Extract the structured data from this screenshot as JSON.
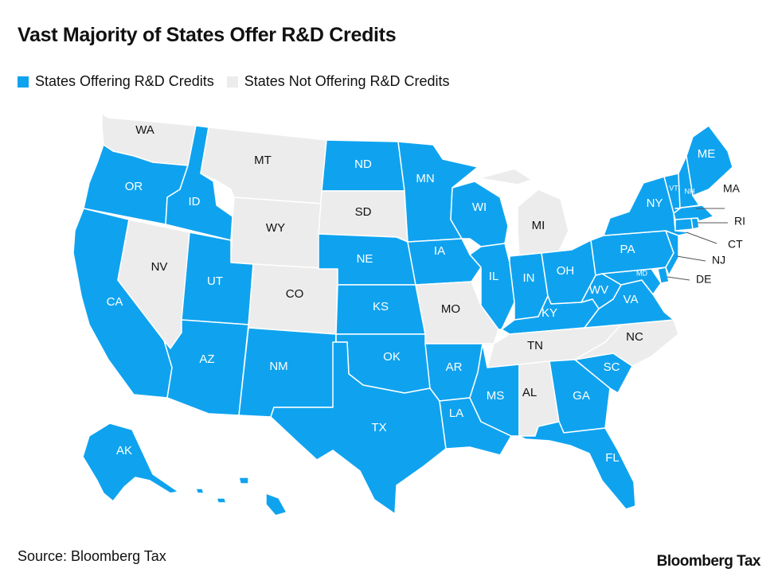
{
  "title": "Vast Majority of States Offer R&D Credits",
  "legend": {
    "offering": "States Offering R&D Credits",
    "not_offering": "States Not Offering R&D Credits"
  },
  "colors": {
    "offering": "#0fa3ef",
    "not_offering": "#ececec",
    "border": "#ffffff",
    "text_on_offering": "#ffffff",
    "text_on_not_offering": "#111111"
  },
  "states": [
    {
      "code": "WA",
      "offers_credit": false
    },
    {
      "code": "OR",
      "offers_credit": true
    },
    {
      "code": "CA",
      "offers_credit": true
    },
    {
      "code": "NV",
      "offers_credit": false
    },
    {
      "code": "ID",
      "offers_credit": true
    },
    {
      "code": "MT",
      "offers_credit": false
    },
    {
      "code": "WY",
      "offers_credit": false
    },
    {
      "code": "UT",
      "offers_credit": true
    },
    {
      "code": "AZ",
      "offers_credit": true
    },
    {
      "code": "CO",
      "offers_credit": false
    },
    {
      "code": "NM",
      "offers_credit": true
    },
    {
      "code": "ND",
      "offers_credit": true
    },
    {
      "code": "SD",
      "offers_credit": false
    },
    {
      "code": "NE",
      "offers_credit": true
    },
    {
      "code": "KS",
      "offers_credit": true
    },
    {
      "code": "OK",
      "offers_credit": true
    },
    {
      "code": "TX",
      "offers_credit": true
    },
    {
      "code": "MN",
      "offers_credit": true
    },
    {
      "code": "IA",
      "offers_credit": true
    },
    {
      "code": "MO",
      "offers_credit": false
    },
    {
      "code": "AR",
      "offers_credit": true
    },
    {
      "code": "LA",
      "offers_credit": true
    },
    {
      "code": "WI",
      "offers_credit": true
    },
    {
      "code": "IL",
      "offers_credit": true
    },
    {
      "code": "MI",
      "offers_credit": false
    },
    {
      "code": "IN",
      "offers_credit": true
    },
    {
      "code": "OH",
      "offers_credit": true
    },
    {
      "code": "KY",
      "offers_credit": true
    },
    {
      "code": "TN",
      "offers_credit": false
    },
    {
      "code": "MS",
      "offers_credit": true
    },
    {
      "code": "AL",
      "offers_credit": false
    },
    {
      "code": "GA",
      "offers_credit": true
    },
    {
      "code": "FL",
      "offers_credit": true
    },
    {
      "code": "SC",
      "offers_credit": true
    },
    {
      "code": "NC",
      "offers_credit": false
    },
    {
      "code": "VA",
      "offers_credit": true
    },
    {
      "code": "WV",
      "offers_credit": true
    },
    {
      "code": "MD",
      "offers_credit": true
    },
    {
      "code": "DE",
      "offers_credit": true
    },
    {
      "code": "PA",
      "offers_credit": true
    },
    {
      "code": "NJ",
      "offers_credit": true
    },
    {
      "code": "NY",
      "offers_credit": true
    },
    {
      "code": "CT",
      "offers_credit": true
    },
    {
      "code": "RI",
      "offers_credit": true
    },
    {
      "code": "MA",
      "offers_credit": true
    },
    {
      "code": "VT",
      "offers_credit": true
    },
    {
      "code": "NH",
      "offers_credit": true
    },
    {
      "code": "ME",
      "offers_credit": true
    },
    {
      "code": "AK",
      "offers_credit": true
    },
    {
      "code": "HI",
      "offers_credit": true
    }
  ],
  "source": "Source: Bloomberg Tax",
  "brand": "Bloomberg Tax"
}
